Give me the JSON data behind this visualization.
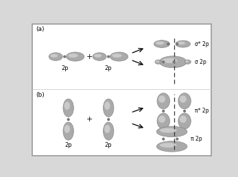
{
  "bg_color": "#d8d8d8",
  "border_color": "#999999",
  "title_a": "(a)",
  "title_b": "(b)",
  "label_2p": "2p",
  "label_sigma_star": "σ* 2p",
  "label_sigma": "σ 2p",
  "label_pi_star": "π* 2p",
  "label_pi": "π 2p",
  "arrow_color": "#111111",
  "dashed_color": "#333333",
  "node_color": "#777777",
  "lobe_dark": "#aaaaaa",
  "lobe_light": "#e0e0e0",
  "lobe_edge": "#888888"
}
